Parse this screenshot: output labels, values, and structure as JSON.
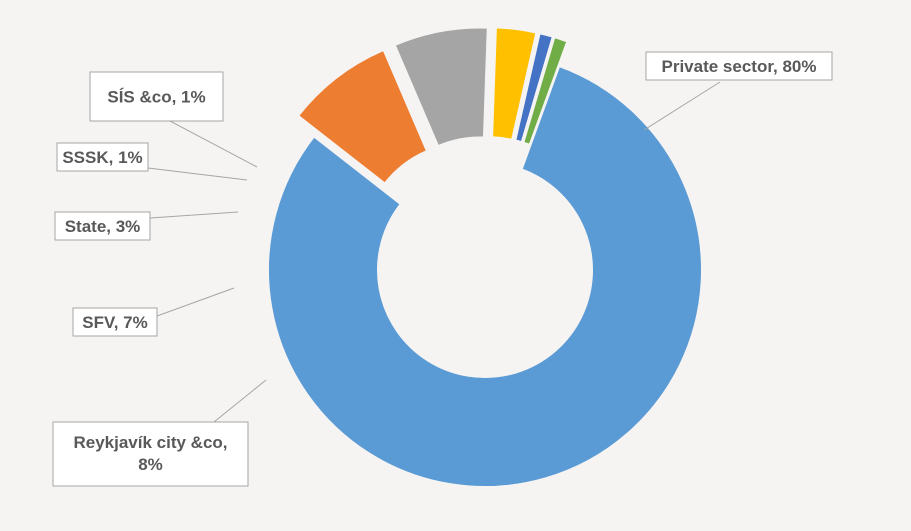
{
  "chart_data": {
    "type": "pie",
    "donut": true,
    "exploded": true,
    "slices": [
      {
        "label": "Private sector, 80%",
        "value": 80,
        "color": "#5b9bd5"
      },
      {
        "label": "Reykjavík city &co, 8%",
        "value": 8,
        "color": "#ed7d31"
      },
      {
        "label": "SFV, 7%",
        "value": 7,
        "color": "#a5a5a5"
      },
      {
        "label": "State, 3%",
        "value": 3,
        "color": "#ffc000"
      },
      {
        "label": "SSSK, 1%",
        "value": 1,
        "color": "#4472c4"
      },
      {
        "label": "SÍS &co, 1%",
        "value": 1,
        "color": "#70ad47"
      }
    ],
    "legend": "none"
  }
}
